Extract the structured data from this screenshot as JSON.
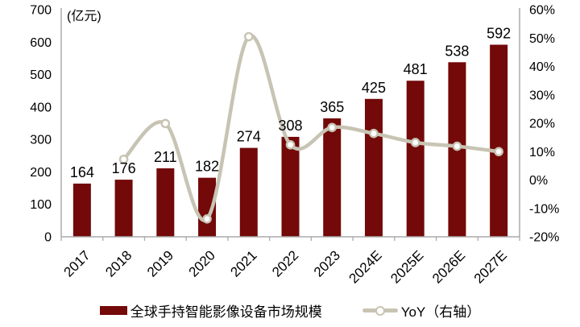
{
  "figure": {
    "unit_label": "(亿元)"
  },
  "legend": {
    "bar_label": "全球手持智能影像设备市场规模",
    "line_label": "YoY（右轴）"
  },
  "colors": {
    "bar": "#730909",
    "line": "#C8C4B4",
    "marker_fill": "#FFFFFF",
    "axis": "#AAAAAA",
    "text": "#000000"
  },
  "chart_data": {
    "type": "bar",
    "subtype": "combo-bar-line-dual-axis",
    "title": "",
    "categories": [
      "2017",
      "2018",
      "2019",
      "2020",
      "2021",
      "2022",
      "2023",
      "2024E",
      "2025E",
      "2026E",
      "2027E"
    ],
    "series": [
      {
        "name": "全球手持智能影像设备市场规模",
        "type": "bar",
        "axis": "left",
        "unit": "亿元",
        "values": [
          164,
          176,
          211,
          182,
          274,
          308,
          365,
          425,
          481,
          538,
          592
        ],
        "labels": [
          "164",
          "176",
          "211",
          "182",
          "274",
          "308",
          "365",
          "425",
          "481",
          "538",
          "592"
        ]
      },
      {
        "name": "YoY（右轴）",
        "type": "line",
        "axis": "right",
        "unit": "%",
        "values": [
          null,
          7.3,
          19.9,
          -13.7,
          50.5,
          12.4,
          18.5,
          16.4,
          13.2,
          11.9,
          10.0
        ]
      }
    ],
    "left_axis": {
      "label": "(亿元)",
      "min": 0,
      "max": 700,
      "tick_step": 100,
      "ticks": [
        "700",
        "600",
        "500",
        "400",
        "300",
        "200",
        "100",
        "0"
      ]
    },
    "right_axis": {
      "min": -20,
      "max": 60,
      "tick_step": 10,
      "ticks": [
        "60%",
        "50%",
        "40%",
        "30%",
        "20%",
        "10%",
        "0%",
        "-10%",
        "-20%"
      ]
    },
    "grid": false,
    "legend_position": "bottom",
    "marker": "circle-white-filled",
    "line_smooth": true
  }
}
